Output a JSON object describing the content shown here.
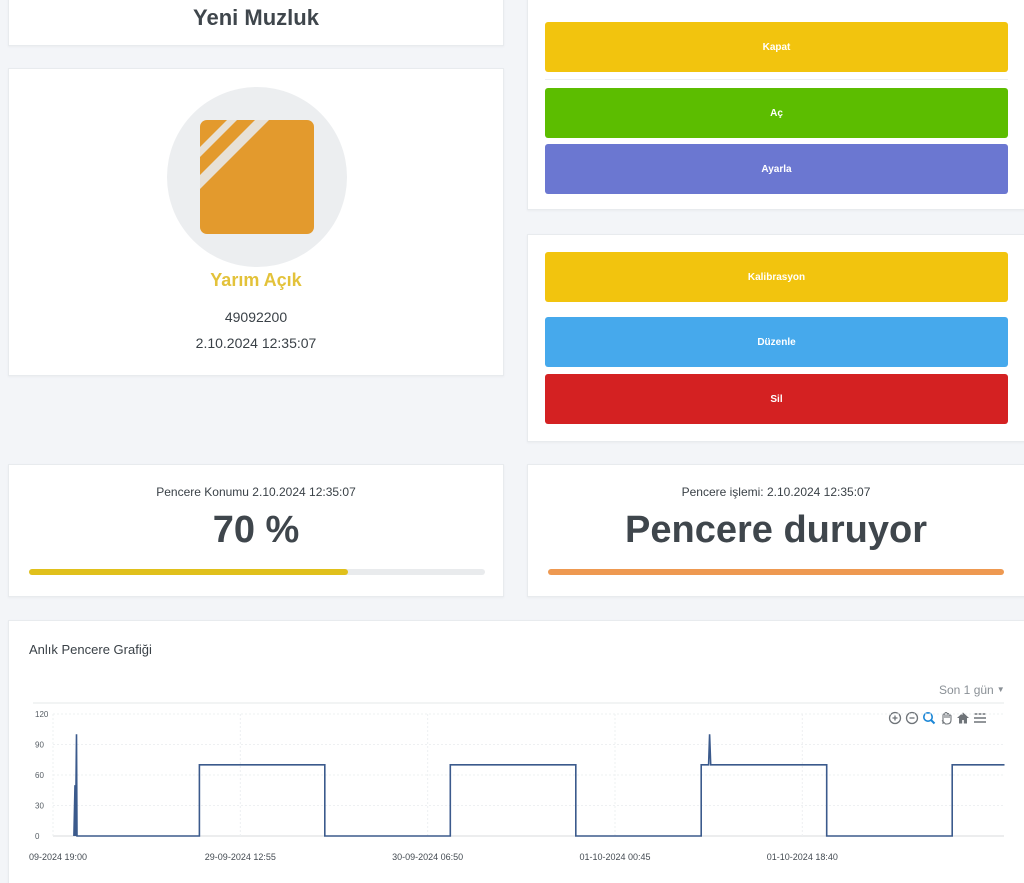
{
  "device": {
    "name": "Yeni Muzluk",
    "status": "Yarım Açık",
    "id": "49092200",
    "timestamp": "2.10.2024 12:35:07"
  },
  "actions_primary": [
    {
      "label": "Kapat",
      "color": "#f2c40e"
    },
    {
      "label": "Aç",
      "color": "#5cbd00"
    },
    {
      "label": "Ayarla",
      "color": "#6b77d1"
    }
  ],
  "actions_secondary": [
    {
      "label": "Kalibrasyon",
      "color": "#f2c40e"
    },
    {
      "label": "Düzenle",
      "color": "#46a9ec"
    },
    {
      "label": "Sil",
      "color": "#d42122"
    }
  ],
  "position": {
    "caption": "Pencere Konumu 2.10.2024 12:35:07",
    "value_text": "70 %",
    "percent": 70,
    "bar_color": "#e0c01c"
  },
  "operation": {
    "caption": "Pencere işlemi: 2.10.2024 12:35:07",
    "value_text": "Pencere duruyor",
    "bar_color": "#ee9951"
  },
  "chart": {
    "title": "Anlık Pencere Grafiği",
    "range_label": "Son 1 gün",
    "toolbar_icons": [
      "zoom-in-icon",
      "zoom-out-icon",
      "zoom-select-icon",
      "pan-hand-icon",
      "home-icon",
      "menu-icon"
    ]
  },
  "chart_data": {
    "type": "line",
    "series_color": "#3b5a8c",
    "ylim": [
      0,
      120
    ],
    "yticks": [
      0,
      30,
      60,
      90,
      120
    ],
    "xtick_labels": [
      "09-2024 19:00",
      "29-09-2024 12:55",
      "30-09-2024 06:50",
      "01-10-2024 00:45",
      "01-10-2024 18:40"
    ],
    "x_hours": [
      0,
      17.917,
      35.833,
      53.75,
      71.667
    ],
    "xlim_hours": [
      0,
      90
    ],
    "grid": true,
    "points": [
      {
        "x": 2.0,
        "y": 0
      },
      {
        "x": 2.1,
        "y": 50
      },
      {
        "x": 2.15,
        "y": 0
      },
      {
        "x": 2.25,
        "y": 100
      },
      {
        "x": 2.3,
        "y": 0
      },
      {
        "x": 14.0,
        "y": 0
      },
      {
        "x": 14.0,
        "y": 70
      },
      {
        "x": 26.0,
        "y": 70
      },
      {
        "x": 26.0,
        "y": 0
      },
      {
        "x": 38.0,
        "y": 0
      },
      {
        "x": 38.0,
        "y": 70
      },
      {
        "x": 50.0,
        "y": 70
      },
      {
        "x": 50.0,
        "y": 0
      },
      {
        "x": 62.0,
        "y": 0
      },
      {
        "x": 62.0,
        "y": 70
      },
      {
        "x": 62.7,
        "y": 70
      },
      {
        "x": 62.8,
        "y": 100
      },
      {
        "x": 62.9,
        "y": 70
      },
      {
        "x": 74.0,
        "y": 70
      },
      {
        "x": 74.0,
        "y": 0
      },
      {
        "x": 86.0,
        "y": 0
      },
      {
        "x": 86.0,
        "y": 70
      },
      {
        "x": 91.0,
        "y": 70
      }
    ]
  }
}
